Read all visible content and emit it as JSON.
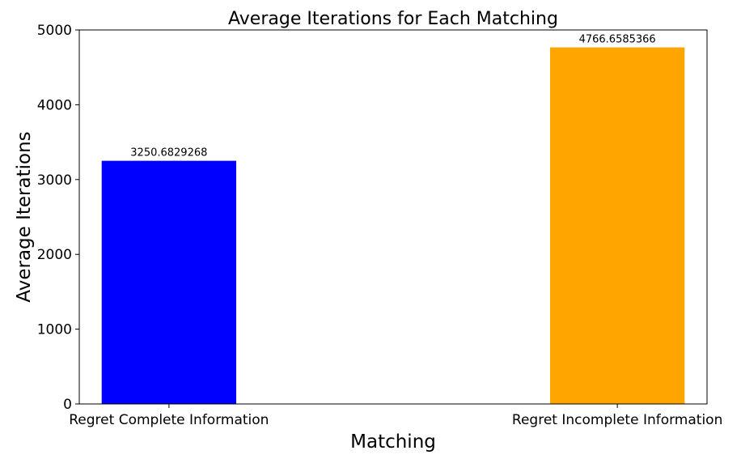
{
  "chart_data": {
    "type": "bar",
    "title": "Average Iterations for Each Matching",
    "xlabel": "Matching",
    "ylabel": "Average Iterations",
    "categories": [
      "Regret Complete Information",
      "Regret Incomplete Information"
    ],
    "values": [
      3250.6829268,
      4766.6585366
    ],
    "value_labels": [
      "3250.6829268",
      "4766.6585366"
    ],
    "colors": [
      "#0000ff",
      "#ffa500"
    ],
    "ylim": [
      0,
      5000
    ],
    "yticks": [
      0,
      1000,
      2000,
      3000,
      4000,
      5000
    ],
    "grid": false,
    "legend": "none"
  }
}
